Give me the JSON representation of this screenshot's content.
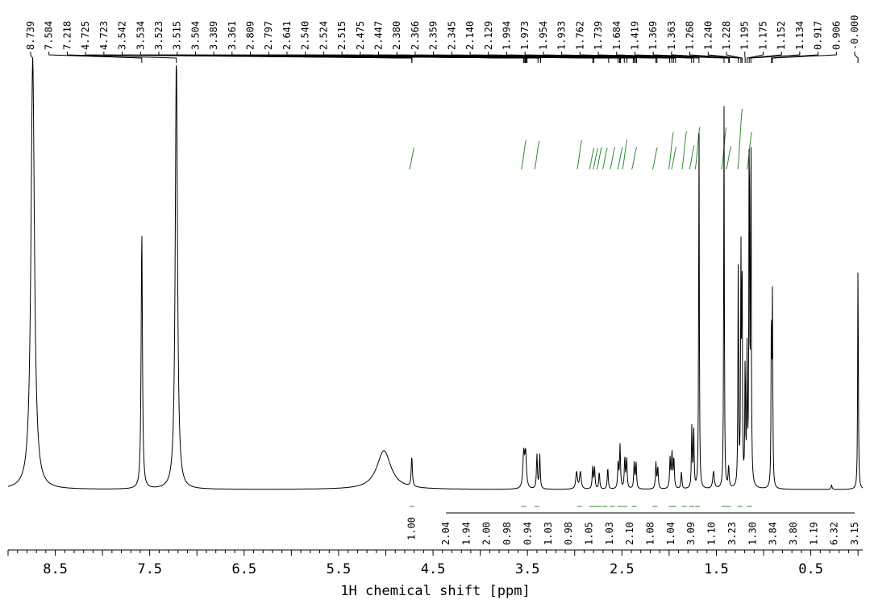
{
  "chart_data": {
    "type": "line",
    "title": "",
    "xlabel": "1H chemical shift [ppm]",
    "xlim": [
      9.0,
      -0.05
    ],
    "x_reversed": true,
    "x_ticks": [
      8.5,
      7.5,
      6.5,
      5.5,
      4.5,
      3.5,
      2.5,
      1.5,
      0.5
    ],
    "x_tick_labels": [
      "8.5",
      "7.5",
      "6.5",
      "5.5",
      "4.5",
      "3.5",
      "2.5",
      "1.5",
      "0.5"
    ],
    "peak_labels": [
      "8.739",
      "7.584",
      "7.218",
      "4.725",
      "4.723",
      "3.542",
      "3.534",
      "3.523",
      "3.515",
      "3.504",
      "3.389",
      "3.361",
      "2.809",
      "2.797",
      "2.641",
      "2.540",
      "2.524",
      "2.515",
      "2.475",
      "2.447",
      "2.380",
      "2.366",
      "2.359",
      "2.345",
      "2.140",
      "2.129",
      "1.994",
      "1.973",
      "1.954",
      "1.933",
      "1.762",
      "1.739",
      "1.684",
      "1.419",
      "1.369",
      "1.363",
      "1.268",
      "1.240",
      "1.228",
      "1.195",
      "1.175",
      "1.152",
      "1.134",
      "0.917",
      "0.906",
      "-0.000"
    ],
    "integrations": [
      {
        "x": 4.725,
        "value": "1.00"
      },
      {
        "x": 3.54,
        "value": "2.04"
      },
      {
        "x": 3.4,
        "value": "1.94"
      },
      {
        "x": 2.95,
        "value": "2.00"
      },
      {
        "x": 2.82,
        "value": "0.98"
      },
      {
        "x": 2.78,
        "value": "0.94"
      },
      {
        "x": 2.74,
        "value": "1.03"
      },
      {
        "x": 2.68,
        "value": "0.98"
      },
      {
        "x": 2.6,
        "value": "1.05"
      },
      {
        "x": 2.52,
        "value": "1.03"
      },
      {
        "x": 2.47,
        "value": "2.10"
      },
      {
        "x": 2.37,
        "value": "1.08"
      },
      {
        "x": 2.15,
        "value": "1.04"
      },
      {
        "x": 1.98,
        "value": "3.09"
      },
      {
        "x": 1.95,
        "value": "1.10"
      },
      {
        "x": 1.84,
        "value": "3.23"
      },
      {
        "x": 1.76,
        "value": "1.30"
      },
      {
        "x": 1.7,
        "value": "3.84"
      },
      {
        "x": 1.42,
        "value": "3.80"
      },
      {
        "x": 1.37,
        "value": "1.19"
      },
      {
        "x": 1.25,
        "value": "6.32"
      },
      {
        "x": 1.15,
        "value": "3.15"
      }
    ],
    "peaks": [
      {
        "ppm": 8.739,
        "height": 1.0,
        "width": 0.022
      },
      {
        "ppm": 7.584,
        "height": 0.6,
        "width": 0.008
      },
      {
        "ppm": 7.218,
        "height": 1.0,
        "width": 0.014
      },
      {
        "ppm": 5.02,
        "height": 0.09,
        "width": 0.09
      },
      {
        "ppm": 4.725,
        "height": 0.07,
        "width": 0.007
      },
      {
        "ppm": 3.54,
        "height": 0.08,
        "width": 0.01
      },
      {
        "ppm": 3.52,
        "height": 0.08,
        "width": 0.01
      },
      {
        "ppm": 3.4,
        "height": 0.08,
        "width": 0.006
      },
      {
        "ppm": 3.37,
        "height": 0.08,
        "width": 0.006
      },
      {
        "ppm": 2.98,
        "height": 0.04,
        "width": 0.01
      },
      {
        "ppm": 2.94,
        "height": 0.04,
        "width": 0.01
      },
      {
        "ppm": 2.81,
        "height": 0.05,
        "width": 0.006
      },
      {
        "ppm": 2.79,
        "height": 0.05,
        "width": 0.006
      },
      {
        "ppm": 2.74,
        "height": 0.04,
        "width": 0.006
      },
      {
        "ppm": 2.65,
        "height": 0.05,
        "width": 0.006
      },
      {
        "ppm": 2.54,
        "height": 0.06,
        "width": 0.006
      },
      {
        "ppm": 2.52,
        "height": 0.1,
        "width": 0.006
      },
      {
        "ppm": 2.47,
        "height": 0.07,
        "width": 0.006
      },
      {
        "ppm": 2.45,
        "height": 0.07,
        "width": 0.006
      },
      {
        "ppm": 2.37,
        "height": 0.06,
        "width": 0.006
      },
      {
        "ppm": 2.35,
        "height": 0.06,
        "width": 0.006
      },
      {
        "ppm": 2.14,
        "height": 0.06,
        "width": 0.006
      },
      {
        "ppm": 2.12,
        "height": 0.05,
        "width": 0.006
      },
      {
        "ppm": 1.99,
        "height": 0.07,
        "width": 0.006
      },
      {
        "ppm": 1.97,
        "height": 0.08,
        "width": 0.006
      },
      {
        "ppm": 1.95,
        "height": 0.07,
        "width": 0.006
      },
      {
        "ppm": 1.87,
        "height": 0.04,
        "width": 0.006
      },
      {
        "ppm": 1.76,
        "height": 0.14,
        "width": 0.005
      },
      {
        "ppm": 1.74,
        "height": 0.14,
        "width": 0.005
      },
      {
        "ppm": 1.684,
        "height": 0.86,
        "width": 0.004
      },
      {
        "ppm": 1.53,
        "height": 0.04,
        "width": 0.01
      },
      {
        "ppm": 1.419,
        "height": 0.9,
        "width": 0.004
      },
      {
        "ppm": 1.37,
        "height": 0.05,
        "width": 0.006
      },
      {
        "ppm": 1.268,
        "height": 0.54,
        "width": 0.004
      },
      {
        "ppm": 1.24,
        "height": 0.53,
        "width": 0.004
      },
      {
        "ppm": 1.228,
        "height": 0.52,
        "width": 0.004
      },
      {
        "ppm": 1.195,
        "height": 0.3,
        "width": 0.004
      },
      {
        "ppm": 1.175,
        "height": 0.3,
        "width": 0.004
      },
      {
        "ppm": 1.152,
        "height": 0.89,
        "width": 0.004
      },
      {
        "ppm": 1.134,
        "height": 0.86,
        "width": 0.004
      },
      {
        "ppm": 0.917,
        "height": 0.42,
        "width": 0.004
      },
      {
        "ppm": 0.906,
        "height": 0.42,
        "width": 0.004
      },
      {
        "ppm": 0.28,
        "height": 0.01,
        "width": 0.006
      },
      {
        "ppm": 0.0,
        "height": 0.55,
        "width": 0.004
      }
    ],
    "colors": {
      "spectrum": "#000000",
      "integral": "#2e8b2e"
    }
  }
}
